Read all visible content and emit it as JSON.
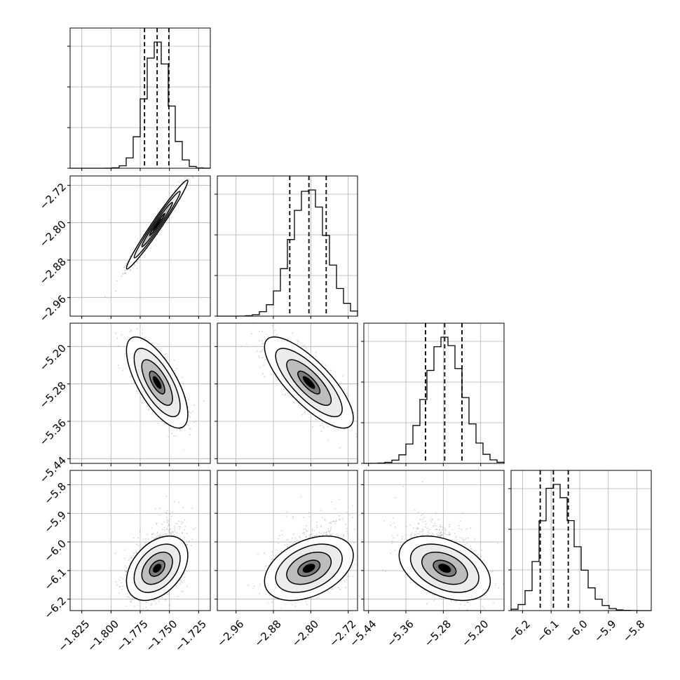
{
  "chart_data": {
    "type": "corner",
    "grid": true,
    "n_params": 4,
    "parameters": [
      {
        "range": [
          -1.835,
          -1.715
        ],
        "ticks": [
          -1.825,
          -1.8,
          -1.775,
          -1.75,
          -1.725
        ],
        "tick_labels": [
          "−1.825",
          "−1.800",
          "−1.775",
          "−1.750",
          "−1.725"
        ],
        "quantiles": [
          -1.7713,
          -1.7605,
          -1.7505
        ],
        "median": -1.7605,
        "sigma": 0.0105
      },
      {
        "range": [
          -3.0,
          -2.7
        ],
        "ticks": [
          -2.96,
          -2.88,
          -2.8,
          -2.72
        ],
        "tick_labels": [
          "−2.96",
          "−2.88",
          "−2.80",
          "−2.72"
        ],
        "quantiles": [
          -2.845,
          -2.804,
          -2.767
        ],
        "median": -2.804,
        "sigma": 0.038
      },
      {
        "range": [
          -5.45,
          -5.15
        ],
        "ticks": [
          -5.44,
          -5.36,
          -5.28,
          -5.2
        ],
        "tick_labels": [
          "−5.44",
          "−5.36",
          "−5.28",
          "−5.20"
        ],
        "quantiles": [
          -5.318,
          -5.277,
          -5.24
        ],
        "median": -5.277,
        "sigma": 0.039
      },
      {
        "range": [
          -6.24,
          -5.75
        ],
        "ticks": [
          -6.2,
          -6.1,
          -6.0,
          -5.9,
          -5.8
        ],
        "tick_labels": [
          "−6.2",
          "−6.1",
          "−6.0",
          "−5.9",
          "−5.8"
        ],
        "quantiles": [
          -6.138,
          -6.092,
          -6.04
        ],
        "median": -6.092,
        "sigma": 0.045
      }
    ],
    "correlations": [
      {
        "pair": [
          0,
          1
        ],
        "rho": 0.98
      },
      {
        "pair": [
          0,
          2
        ],
        "rho": -0.7
      },
      {
        "pair": [
          1,
          2
        ],
        "rho": -0.78
      },
      {
        "pair": [
          0,
          3
        ],
        "rho": 0.4
      },
      {
        "pair": [
          1,
          3
        ],
        "rho": 0.4
      },
      {
        "pair": [
          2,
          3
        ],
        "rho": -0.4
      }
    ],
    "histogram_bins": 20,
    "contour_levels_sigma": [
      0.5,
      1.0,
      1.5,
      2.0
    ],
    "colors": {
      "scatter": "#9a9a9a",
      "density_dark": "#000000",
      "line": "#000000",
      "grid": "#b0b0b0"
    }
  }
}
